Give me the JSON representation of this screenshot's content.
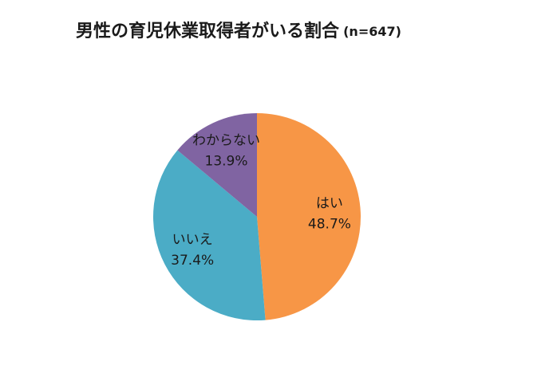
{
  "chart_data": {
    "type": "pie",
    "title": "男性の育児休業取得者がいる割合",
    "subtitle": "(n=647)",
    "categories": [
      "はい",
      "いいえ",
      "わからない"
    ],
    "values": [
      48.7,
      37.4,
      13.9
    ],
    "value_labels": [
      "48.7%",
      "37.4%",
      "13.9%"
    ],
    "colors": [
      "#F79646",
      "#4BACC6",
      "#8064A2"
    ]
  }
}
